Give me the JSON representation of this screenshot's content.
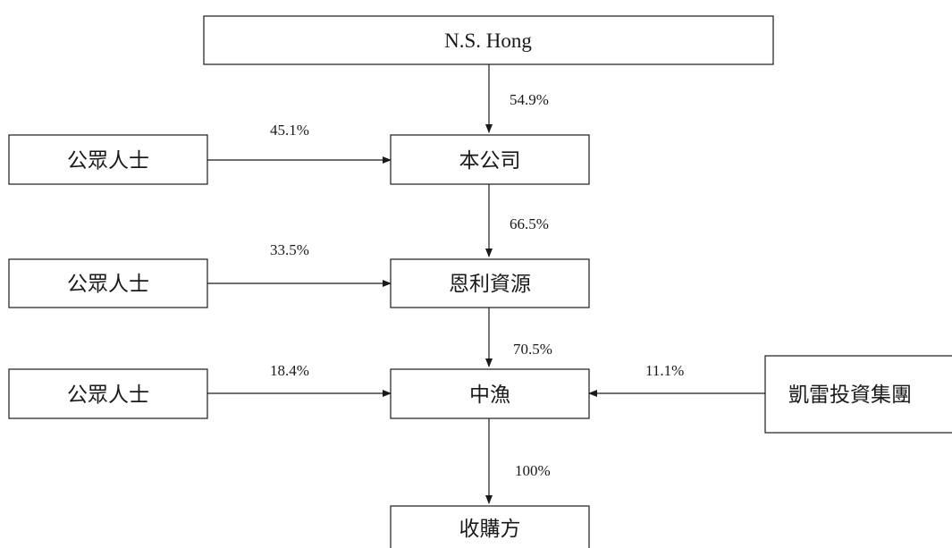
{
  "nodes": {
    "ns_hong": "N.S. Hong",
    "company": "本公司",
    "public_1": "公眾人士",
    "public_2": "公眾人士",
    "public_3": "公眾人士",
    "enli": "恩利資源",
    "zhongyu": "中漁",
    "kailei": "凱雷投資集團",
    "acquirer": "收購方"
  },
  "edges": {
    "ns_hong_to_company": "54.9%",
    "public1_to_company": "45.1%",
    "company_to_enli": "66.5%",
    "public2_to_enli": "33.5%",
    "enli_to_zhongyu": "70.5%",
    "public3_to_zhongyu": "18.4%",
    "kailei_to_zhongyu": "11.1%",
    "zhongyu_to_acquirer": "100%"
  }
}
